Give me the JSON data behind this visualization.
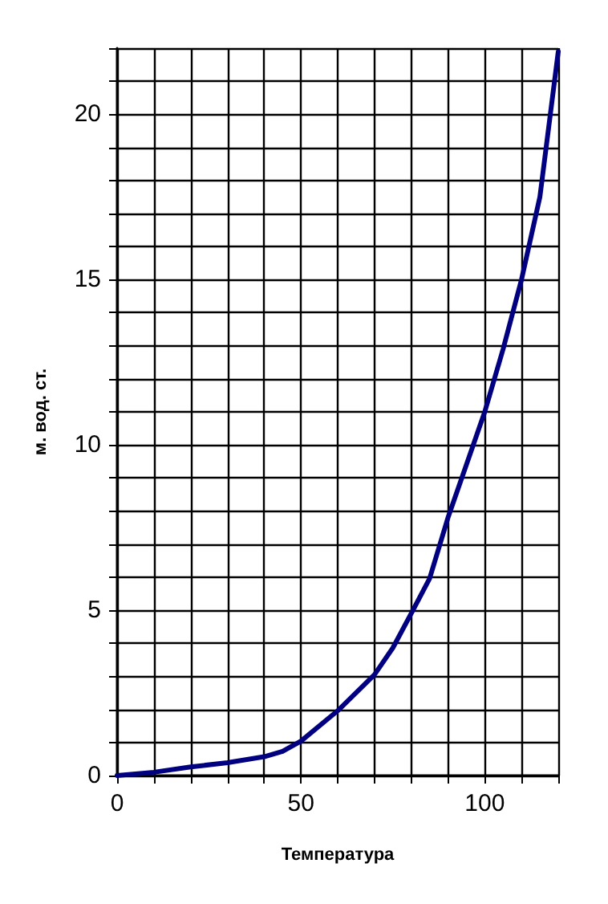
{
  "chart_data": {
    "type": "line",
    "xlabel": "Температура",
    "ylabel": "м. вод. ст.",
    "x": [
      0,
      10,
      20,
      30,
      40,
      45,
      50,
      60,
      70,
      75,
      80,
      85,
      90,
      95,
      100,
      105,
      110,
      115,
      120
    ],
    "series": [
      {
        "color": "#000080",
        "values": [
          0,
          0.1,
          0.26,
          0.39,
          0.57,
          0.73,
          1.04,
          1.96,
          3.05,
          3.86,
          4.9,
          5.96,
          7.8,
          9.4,
          11.0,
          12.9,
          15.0,
          17.5,
          21.9
        ]
      }
    ],
    "xlim": [
      0,
      120
    ],
    "ylim": [
      0,
      22
    ],
    "xticks": [
      0,
      {
        "value": 10,
        "label": null
      },
      {
        "value": 20,
        "label": null
      },
      {
        "value": 30,
        "label": null
      },
      {
        "value": 40,
        "label": null
      },
      50,
      {
        "value": 60,
        "label": null
      },
      {
        "value": 70,
        "label": null
      },
      {
        "value": 80,
        "label": null
      },
      {
        "value": 90,
        "label": null
      },
      100,
      {
        "value": 110,
        "label": null
      },
      {
        "value": 120,
        "label": null
      }
    ],
    "yticks": [
      0,
      {
        "value": 1,
        "label": null
      },
      {
        "value": 2,
        "label": null
      },
      {
        "value": 3,
        "label": null
      },
      {
        "value": 4,
        "label": null
      },
      5,
      {
        "value": 6,
        "label": null
      },
      {
        "value": 7,
        "label": null
      },
      {
        "value": 8,
        "label": null
      },
      {
        "value": 9,
        "label": null
      },
      10,
      {
        "value": 11,
        "label": null
      },
      {
        "value": 12,
        "label": null
      },
      {
        "value": 13,
        "label": null
      },
      {
        "value": 14,
        "label": null
      },
      15,
      {
        "value": 16,
        "label": null
      },
      {
        "value": 17,
        "label": null
      },
      {
        "value": 18,
        "label": null
      },
      {
        "value": 19,
        "label": null
      },
      20,
      {
        "value": 21,
        "label": null
      },
      {
        "value": 22,
        "label": null
      }
    ],
    "grid": true,
    "marker": "none",
    "line_style": "solid"
  }
}
